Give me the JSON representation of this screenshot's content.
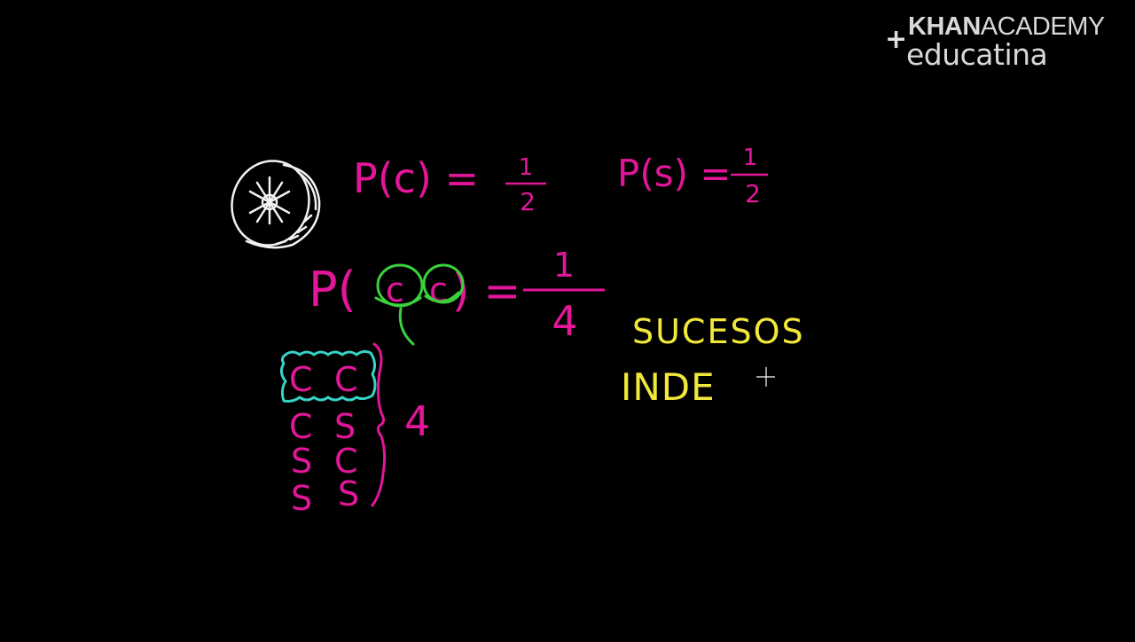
{
  "logo": {
    "plus": "+",
    "khan_bold": "KHAN",
    "khan_rest": "ACADEMY",
    "educatina": "educatina"
  },
  "board": {
    "formula_p_c": {
      "lhs": "P(c) =",
      "numerator": "1",
      "denominator": "2"
    },
    "formula_p_s": {
      "lhs": "P(s) =",
      "numerator": "1",
      "denominator": "2"
    },
    "formula_p_cc": {
      "p_open": "P(",
      "c1": "c",
      "c2": "c",
      "p_close": ") =",
      "numerator": "1",
      "denominator": "4"
    },
    "outcomes": [
      {
        "first": "C",
        "second": "C"
      },
      {
        "first": "C",
        "second": "S"
      },
      {
        "first": "S",
        "second": "C"
      },
      {
        "first": "S",
        "second": "S"
      }
    ],
    "outcome_count": "4",
    "word_sucesos": "SUCESOS",
    "word_inde": "INDE"
  },
  "colors": {
    "background": "#000000",
    "magenta": "#e3169a",
    "green": "#3bd13b",
    "cyan": "#37d3c4",
    "yellow": "#f2e83a",
    "white": "#f2f2f2"
  },
  "icons": [
    "coin-icon",
    "crosshair-cursor-icon"
  ]
}
